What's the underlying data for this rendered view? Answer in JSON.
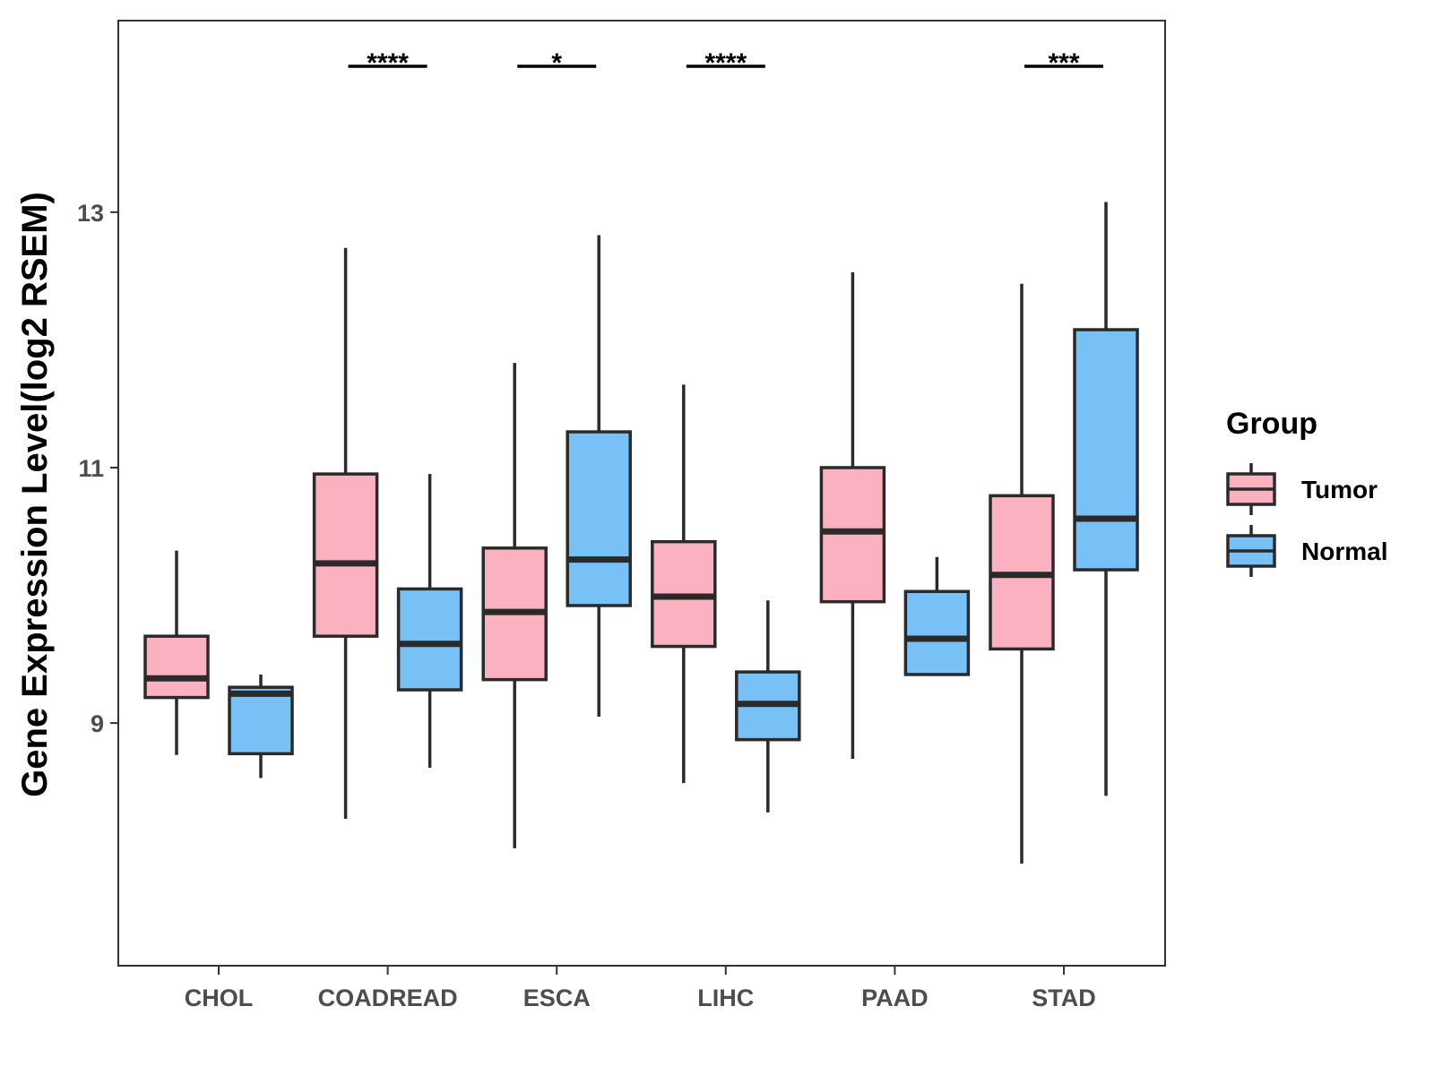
{
  "chart_data": {
    "type": "boxplot",
    "title": "",
    "xlabel": "",
    "ylabel": "Gene Expression Level(log2 RSEM)",
    "ylim": [
      7.1,
      14.5
    ],
    "yticks": [
      9,
      11,
      13
    ],
    "categories": [
      "CHOL",
      "COADREAD",
      "ESCA",
      "LIHC",
      "PAAD",
      "STAD"
    ],
    "series": [
      {
        "name": "Tumor",
        "color": "#FBB1C0",
        "boxes": [
          {
            "category": "CHOL",
            "whisker_low": 8.75,
            "q1": 9.2,
            "median": 9.35,
            "q3": 9.68,
            "whisker_high": 10.35
          },
          {
            "category": "COADREAD",
            "whisker_low": 8.25,
            "q1": 9.68,
            "median": 10.25,
            "q3": 10.95,
            "whisker_high": 12.72
          },
          {
            "category": "ESCA",
            "whisker_low": 8.02,
            "q1": 9.34,
            "median": 9.87,
            "q3": 10.37,
            "whisker_high": 11.82
          },
          {
            "category": "LIHC",
            "whisker_low": 8.53,
            "q1": 9.6,
            "median": 9.99,
            "q3": 10.42,
            "whisker_high": 11.65
          },
          {
            "category": "PAAD",
            "whisker_low": 8.72,
            "q1": 9.95,
            "median": 10.5,
            "q3": 11.0,
            "whisker_high": 12.53
          },
          {
            "category": "STAD",
            "whisker_low": 7.9,
            "q1": 9.58,
            "median": 10.16,
            "q3": 10.78,
            "whisker_high": 12.44
          }
        ]
      },
      {
        "name": "Normal",
        "color": "#78C1F7",
        "boxes": [
          {
            "category": "CHOL",
            "whisker_low": 8.57,
            "q1": 8.76,
            "median": 9.23,
            "q3": 9.28,
            "whisker_high": 9.38
          },
          {
            "category": "COADREAD",
            "whisker_low": 8.65,
            "q1": 9.26,
            "median": 9.62,
            "q3": 10.05,
            "whisker_high": 10.95
          },
          {
            "category": "ESCA",
            "whisker_low": 9.05,
            "q1": 9.92,
            "median": 10.28,
            "q3": 11.28,
            "whisker_high": 12.82
          },
          {
            "category": "LIHC",
            "whisker_low": 8.3,
            "q1": 8.87,
            "median": 9.15,
            "q3": 9.4,
            "whisker_high": 9.96
          },
          {
            "category": "PAAD",
            "whisker_low": 9.38,
            "q1": 9.38,
            "median": 9.66,
            "q3": 10.03,
            "whisker_high": 10.3
          },
          {
            "category": "STAD",
            "whisker_low": 8.43,
            "q1": 10.2,
            "median": 10.6,
            "q3": 12.08,
            "whisker_high": 13.08
          }
        ]
      }
    ],
    "annotations": [
      {
        "category": "COADREAD",
        "label": "****"
      },
      {
        "category": "ESCA",
        "label": "*"
      },
      {
        "category": "LIHC",
        "label": "****"
      },
      {
        "category": "STAD",
        "label": "***"
      }
    ],
    "legend": {
      "title": "Group",
      "position": "right",
      "entries": [
        "Tumor",
        "Normal"
      ]
    },
    "grid": false
  }
}
